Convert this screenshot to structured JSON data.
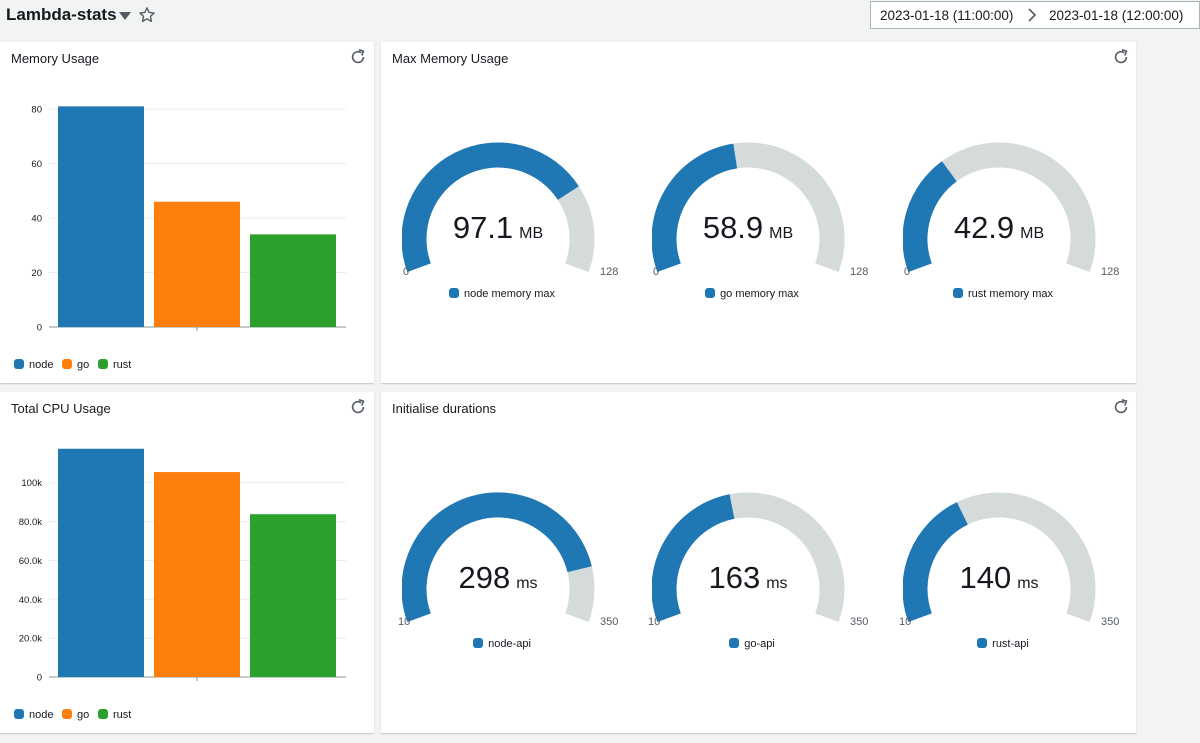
{
  "dashboard": {
    "title": "Lambda-stats",
    "date_start": "2023-01-18 (11:00:00)",
    "date_end": "2023-01-18 (12:00:00)"
  },
  "colors": {
    "node": "#1f77b4",
    "go": "#ff7f0e",
    "rust": "#2ca02c",
    "gauge_fill": "#1f77b4",
    "gauge_track": "#d5dbdb"
  },
  "panels": {
    "memory_usage": {
      "title": "Memory Usage"
    },
    "max_memory": {
      "title": "Max Memory Usage"
    },
    "cpu_usage": {
      "title": "Total CPU Usage"
    },
    "init_durations": {
      "title": "Initialise durations"
    }
  },
  "chart_data": [
    {
      "type": "bar",
      "title": "Memory Usage",
      "categories": [
        "node",
        "go",
        "rust"
      ],
      "values": [
        81,
        46,
        34
      ],
      "ylim": [
        0,
        87
      ],
      "yticks": [
        "0",
        "20",
        "40",
        "60",
        "80"
      ],
      "ytick_values": [
        0,
        20,
        40,
        60,
        80
      ],
      "grid": true,
      "legend": [
        "node",
        "go",
        "rust"
      ],
      "legend_position": "bottom-left"
    },
    {
      "type": "bar",
      "title": "Total CPU Usage",
      "categories": [
        "node",
        "go",
        "rust"
      ],
      "values": [
        117500,
        105500,
        83800
      ],
      "ylim": [
        0,
        122000
      ],
      "yticks": [
        "0",
        "20.0k",
        "40.0k",
        "60.0k",
        "80.0k",
        "100k"
      ],
      "ytick_values": [
        0,
        20000,
        40000,
        60000,
        80000,
        100000
      ],
      "grid": true,
      "legend": [
        "node",
        "go",
        "rust"
      ],
      "legend_position": "bottom-left"
    }
  ],
  "gauges_memory": [
    {
      "value": "97.1",
      "numeric": 97.1,
      "unit": "MB",
      "min": "0",
      "max": "128",
      "min_num": 0,
      "max_num": 128,
      "label": "node memory max"
    },
    {
      "value": "58.9",
      "numeric": 58.9,
      "unit": "MB",
      "min": "0",
      "max": "128",
      "min_num": 0,
      "max_num": 128,
      "label": "go memory max"
    },
    {
      "value": "42.9",
      "numeric": 42.9,
      "unit": "MB",
      "min": "0",
      "max": "128",
      "min_num": 0,
      "max_num": 128,
      "label": "rust memory max"
    }
  ],
  "gauges_init": [
    {
      "value": "298",
      "numeric": 298,
      "unit": "ms",
      "min": "10",
      "max": "350",
      "min_num": 10,
      "max_num": 350,
      "label": "node-api"
    },
    {
      "value": "163",
      "numeric": 163,
      "unit": "ms",
      "min": "10",
      "max": "350",
      "min_num": 10,
      "max_num": 350,
      "label": "go-api"
    },
    {
      "value": "140",
      "numeric": 140,
      "unit": "ms",
      "min": "10",
      "max": "350",
      "min_num": 10,
      "max_num": 350,
      "label": "rust-api"
    }
  ],
  "icons": {
    "caret": "caret-down-icon",
    "star": "star-icon",
    "arrow": "chevron-right-icon",
    "refresh": "refresh-icon"
  }
}
